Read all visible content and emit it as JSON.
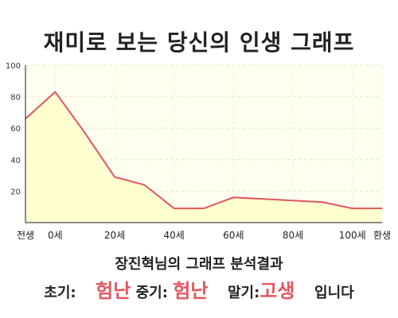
{
  "title": "재미로 보는 당신의 인생 그래프",
  "chart_data": {
    "type": "area",
    "x": [
      -10,
      0,
      10,
      20,
      30,
      40,
      50,
      60,
      70,
      80,
      90,
      100,
      110
    ],
    "values": [
      66,
      83,
      57,
      29,
      24,
      9,
      9,
      16,
      15,
      14,
      13,
      9,
      9
    ],
    "x_tick_labels": [
      {
        "x": -10,
        "label": "전생"
      },
      {
        "x": 0,
        "label": "0세"
      },
      {
        "x": 20,
        "label": "20세"
      },
      {
        "x": 40,
        "label": "40세"
      },
      {
        "x": 60,
        "label": "60세"
      },
      {
        "x": 80,
        "label": "80세"
      },
      {
        "x": 100,
        "label": "100세"
      },
      {
        "x": 110,
        "label": "환생"
      }
    ],
    "y_ticks": [
      20,
      40,
      60,
      80,
      100
    ],
    "ylim": [
      0,
      100
    ],
    "xlim": [
      -10,
      110
    ],
    "grid": true,
    "line_color": "#e05560",
    "fill_color": "#ffffd0"
  },
  "result": {
    "subtitle": "장진혁님의 그래프 분석결과",
    "early_label": "초기:",
    "early_value": "험난",
    "mid_label": "중기:",
    "mid_value": "험난",
    "late_label": "말기:",
    "late_value": "고생",
    "ending": "입니다"
  }
}
